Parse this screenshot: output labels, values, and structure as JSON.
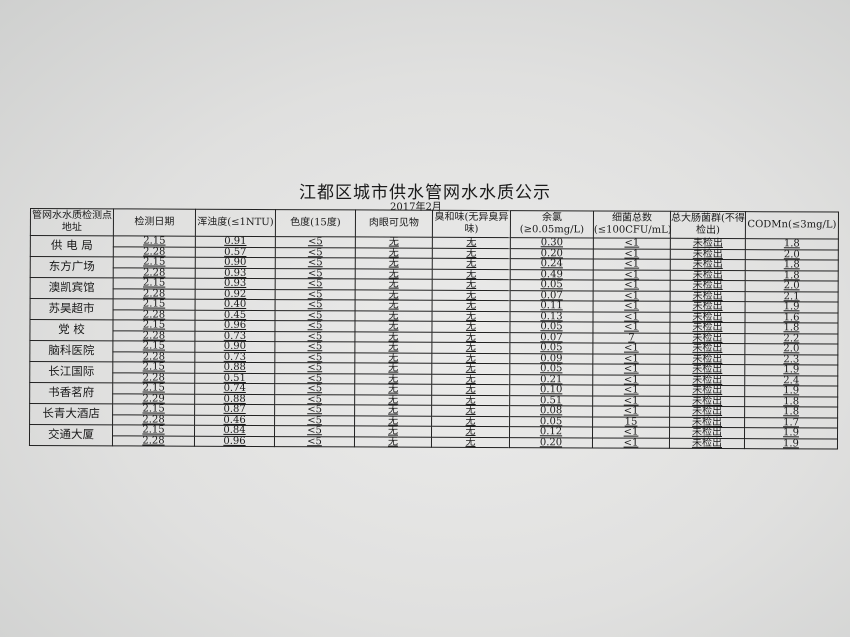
{
  "title": "江都区城市供水管网水水质公示",
  "subtitle": "2017年2月",
  "columns": [
    "管网水水质检测点地址",
    "检测日期",
    "浑浊度(≤1NTU)",
    "色度(15度)",
    "肉眼可见物",
    "臭和味(无异臭异味)",
    "余氯(≥0.05mg/L)",
    "细菌总数(≤100CFU/mL)",
    "总大肠菌群(不得检出)",
    "CODMn(≤3mg/L)"
  ],
  "sites": [
    {
      "name": "供 电 局",
      "rows": [
        [
          "2.15",
          "0.91",
          "<5",
          "无",
          "无",
          "0.30",
          "<1",
          "未检出",
          "1.8"
        ],
        [
          "2.28",
          "0.57",
          "<5",
          "无",
          "无",
          "0.20",
          "<1",
          "未检出",
          "2.0"
        ]
      ]
    },
    {
      "name": "东方广场",
      "rows": [
        [
          "2.15",
          "0.90",
          "<5",
          "无",
          "无",
          "0.24",
          "<1",
          "未检出",
          "1.8"
        ],
        [
          "2.28",
          "0.93",
          "<5",
          "无",
          "无",
          "0.49",
          "<1",
          "未检出",
          "1.8"
        ]
      ]
    },
    {
      "name": "澳凯宾馆",
      "rows": [
        [
          "2.15",
          "0.93",
          "<5",
          "无",
          "无",
          "0.05",
          "<1",
          "未检出",
          "2.0"
        ],
        [
          "2.28",
          "0.92",
          "<5",
          "无",
          "无",
          "0.07",
          "<1",
          "未检出",
          "2.1"
        ]
      ]
    },
    {
      "name": "苏昊超市",
      "rows": [
        [
          "2.15",
          "0.40",
          "<5",
          "无",
          "无",
          "0.11",
          "<1",
          "未检出",
          "1.9"
        ],
        [
          "2.28",
          "0.45",
          "<5",
          "无",
          "无",
          "0.13",
          "<1",
          "未检出",
          "1.6"
        ]
      ]
    },
    {
      "name": "党  校",
      "rows": [
        [
          "2.15",
          "0.96",
          "<5",
          "无",
          "无",
          "0.05",
          "<1",
          "未检出",
          "1.8"
        ],
        [
          "2.28",
          "0.73",
          "<5",
          "无",
          "无",
          "0.07",
          "7",
          "未检出",
          "2.2"
        ]
      ]
    },
    {
      "name": "脑科医院",
      "rows": [
        [
          "2.15",
          "0.90",
          "<5",
          "无",
          "无",
          "0.05",
          "<1",
          "未检出",
          "2.0"
        ],
        [
          "2.28",
          "0.73",
          "<5",
          "无",
          "无",
          "0.09",
          "<1",
          "未检出",
          "2.3"
        ]
      ]
    },
    {
      "name": "长江国际",
      "rows": [
        [
          "2.15",
          "0.88",
          "<5",
          "无",
          "无",
          "0.05",
          "<1",
          "未检出",
          "1.9"
        ],
        [
          "2.28",
          "0.51",
          "<5",
          "无",
          "无",
          "0.21",
          "<1",
          "未检出",
          "2.4"
        ]
      ]
    },
    {
      "name": "书香茗府",
      "rows": [
        [
          "2.15",
          "0.74",
          "<5",
          "无",
          "无",
          "0.10",
          "<1",
          "未检出",
          "1.9"
        ],
        [
          "2.29",
          "0.88",
          "<5",
          "无",
          "无",
          "0.51",
          "<1",
          "未检出",
          "1.8"
        ]
      ]
    },
    {
      "name": "长青大酒店",
      "rows": [
        [
          "2.15",
          "0.87",
          "<5",
          "无",
          "无",
          "0.08",
          "<1",
          "未检出",
          "1.8"
        ],
        [
          "2.28",
          "0.46",
          "<5",
          "无",
          "无",
          "0.05",
          "15",
          "未检出",
          "1.7"
        ]
      ]
    },
    {
      "name": "交通大厦",
      "rows": [
        [
          "2.15",
          "0.84",
          "<5",
          "无",
          "无",
          "0.12",
          "<1",
          "未检出",
          "1.9"
        ],
        [
          "2.28",
          "0.96",
          "<5",
          "无",
          "无",
          "0.20",
          "<1",
          "未检出",
          "1.9"
        ]
      ]
    }
  ]
}
